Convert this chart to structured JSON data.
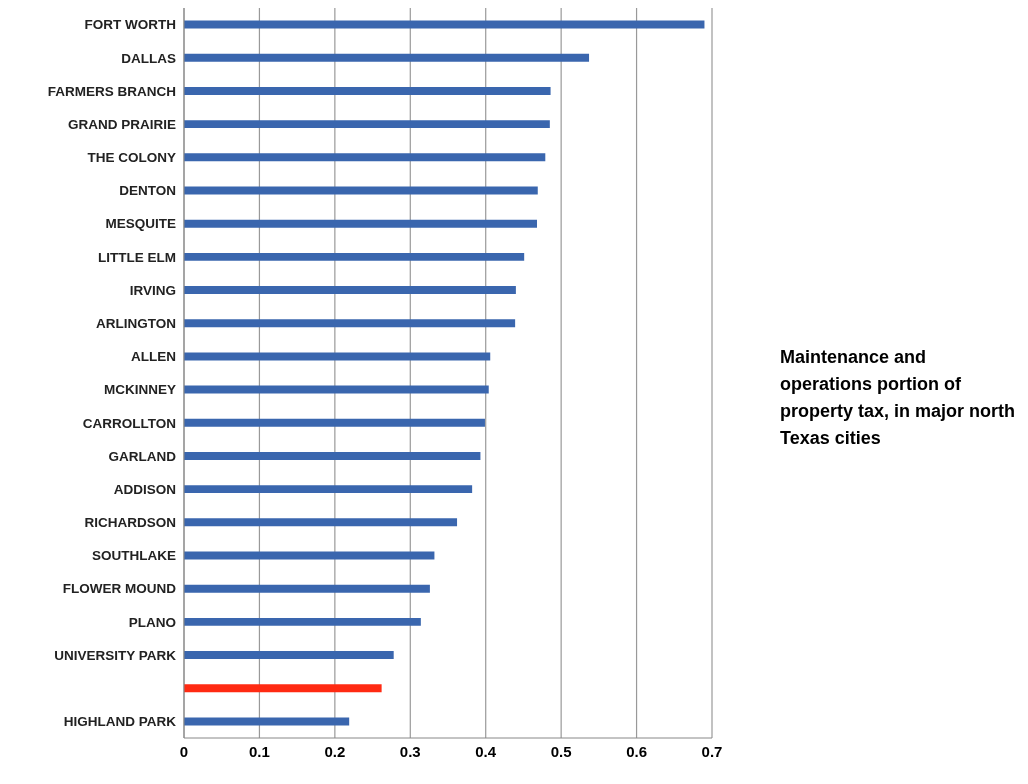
{
  "chart_data": {
    "type": "bar",
    "orientation": "horizontal",
    "title": "Maintenance and operations portion of property tax, in major north Texas cities",
    "categories": [
      "FORT WORTH",
      "DALLAS",
      "FARMERS BRANCH",
      "GRAND PRAIRIE",
      "THE COLONY",
      "DENTON",
      "MESQUITE",
      "LITTLE ELM",
      "IRVING",
      "ARLINGTON",
      "ALLEN",
      "MCKINNEY",
      "CARROLLTON",
      "GARLAND",
      "ADDISON",
      "RICHARDSON",
      "SOUTHLAKE",
      "FLOWER MOUND",
      "PLANO",
      "UNIVERSITY PARK",
      null,
      "HIGHLAND PARK"
    ],
    "values": [
      0.69,
      0.537,
      0.486,
      0.485,
      0.479,
      0.469,
      0.468,
      0.451,
      0.44,
      0.439,
      0.406,
      0.404,
      0.399,
      0.393,
      0.382,
      0.362,
      0.332,
      0.326,
      0.314,
      0.278,
      0.262,
      0.219
    ],
    "colors": [
      "#3a66ae",
      "#3a66ae",
      "#3a66ae",
      "#3a66ae",
      "#3a66ae",
      "#3a66ae",
      "#3a66ae",
      "#3a66ae",
      "#3a66ae",
      "#3a66ae",
      "#3a66ae",
      "#3a66ae",
      "#3a66ae",
      "#3a66ae",
      "#3a66ae",
      "#3a66ae",
      "#3a66ae",
      "#3a66ae",
      "#3a66ae",
      "#3a66ae",
      "#ff2a12",
      "#3a66ae"
    ],
    "xlim": [
      0,
      0.7
    ],
    "xticks": [
      0,
      0.1,
      0.2,
      0.3,
      0.4,
      0.5,
      0.6,
      0.7
    ],
    "grid": "x"
  }
}
